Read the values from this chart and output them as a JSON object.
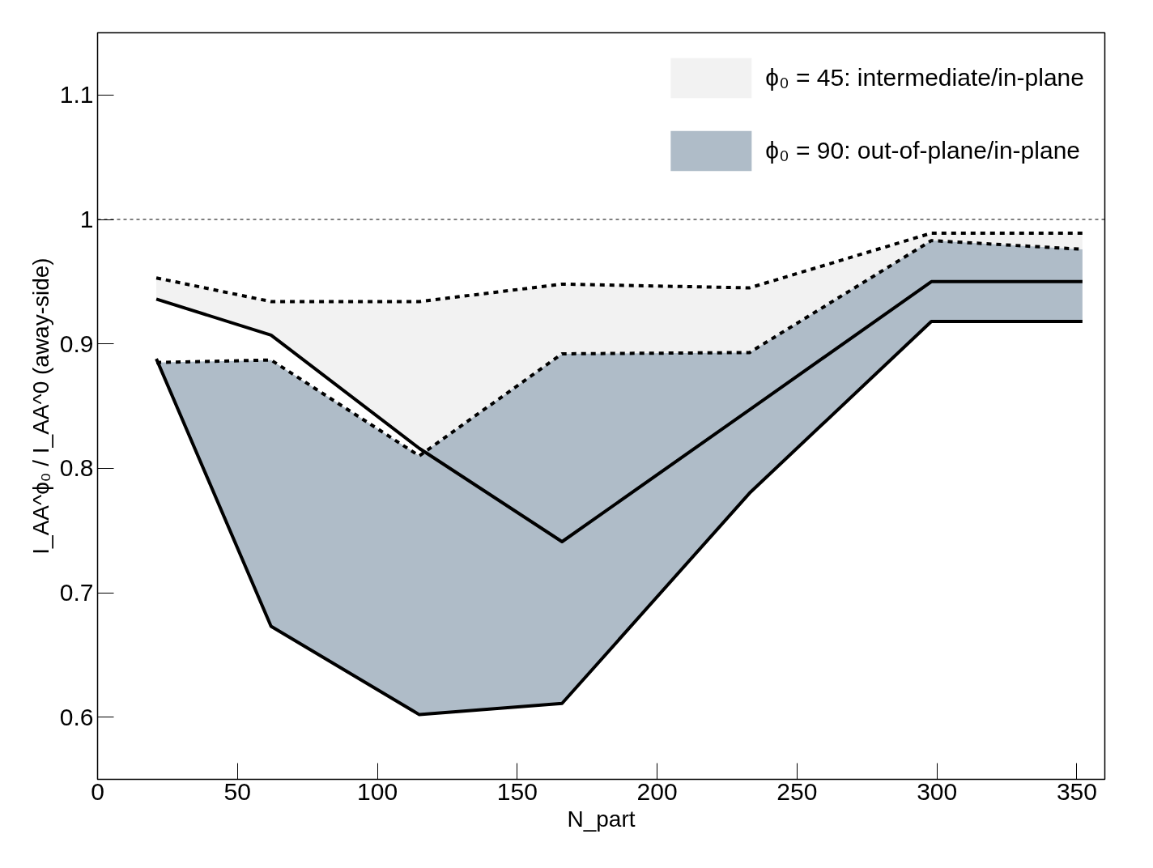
{
  "chart_data": {
    "type": "area",
    "xlabel": "N_part",
    "ylabel": "I_AA^ϕ₀ / I_AA^0 (away-side)",
    "x": [
      21,
      62,
      115,
      166,
      233,
      298,
      352
    ],
    "series": [
      {
        "name": "ϕ₀ = 45: intermediate/in-plane",
        "color": "#f2f2f2",
        "values": [
          0.953,
          0.934,
          0.934,
          0.948,
          0.945,
          0.989,
          0.989
        ],
        "line_style": "dashed"
      },
      {
        "name": "ϕ₀ = 90: out-of-plane/in-plane",
        "color": "#afbcc8",
        "values": [
          0.885,
          0.887,
          0.81,
          0.892,
          0.893,
          0.983,
          0.976
        ],
        "line_style": "dashed"
      },
      {
        "type": "line",
        "color": "#000000",
        "values": [
          0.936,
          0.907,
          0.816,
          0.741,
          0.847,
          0.95,
          0.95
        ],
        "line_style": "solid"
      },
      {
        "type": "line",
        "color": "#000000",
        "values": [
          0.888,
          0.673,
          0.602,
          0.611,
          0.78,
          0.918,
          0.918
        ],
        "line_style": "solid"
      }
    ],
    "xlim": [
      0,
      360
    ],
    "ylim": [
      0.55,
      1.15
    ],
    "xticks": [
      0,
      50,
      100,
      150,
      200,
      250,
      300,
      350
    ],
    "yticks": [
      0.6,
      0.7,
      0.8,
      0.9,
      1,
      1.1
    ],
    "ref_lines": [
      {
        "axis": "y",
        "value": 1,
        "line_style": "dashed"
      }
    ],
    "grid": false,
    "legend": "top right"
  }
}
